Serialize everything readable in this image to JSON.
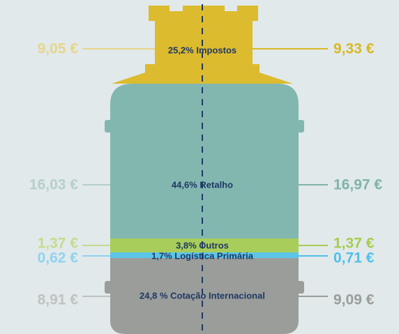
{
  "segments": [
    {
      "label": "25,2% Impostos",
      "left": "9,05 €",
      "right": "9,33 €"
    },
    {
      "label": "44,6% Retalho",
      "left": "16,03 €",
      "right": "16,97 €"
    },
    {
      "label": "3,8% Outros",
      "left": "1,37 €",
      "right": "1,37 €"
    },
    {
      "label": "1,7% Logística Primária",
      "left": "0,62 €",
      "right": "0,71 €"
    },
    {
      "label": "24,8 % Cotação Internacional",
      "left": "8,91 €",
      "right": "9,09 €"
    }
  ]
}
